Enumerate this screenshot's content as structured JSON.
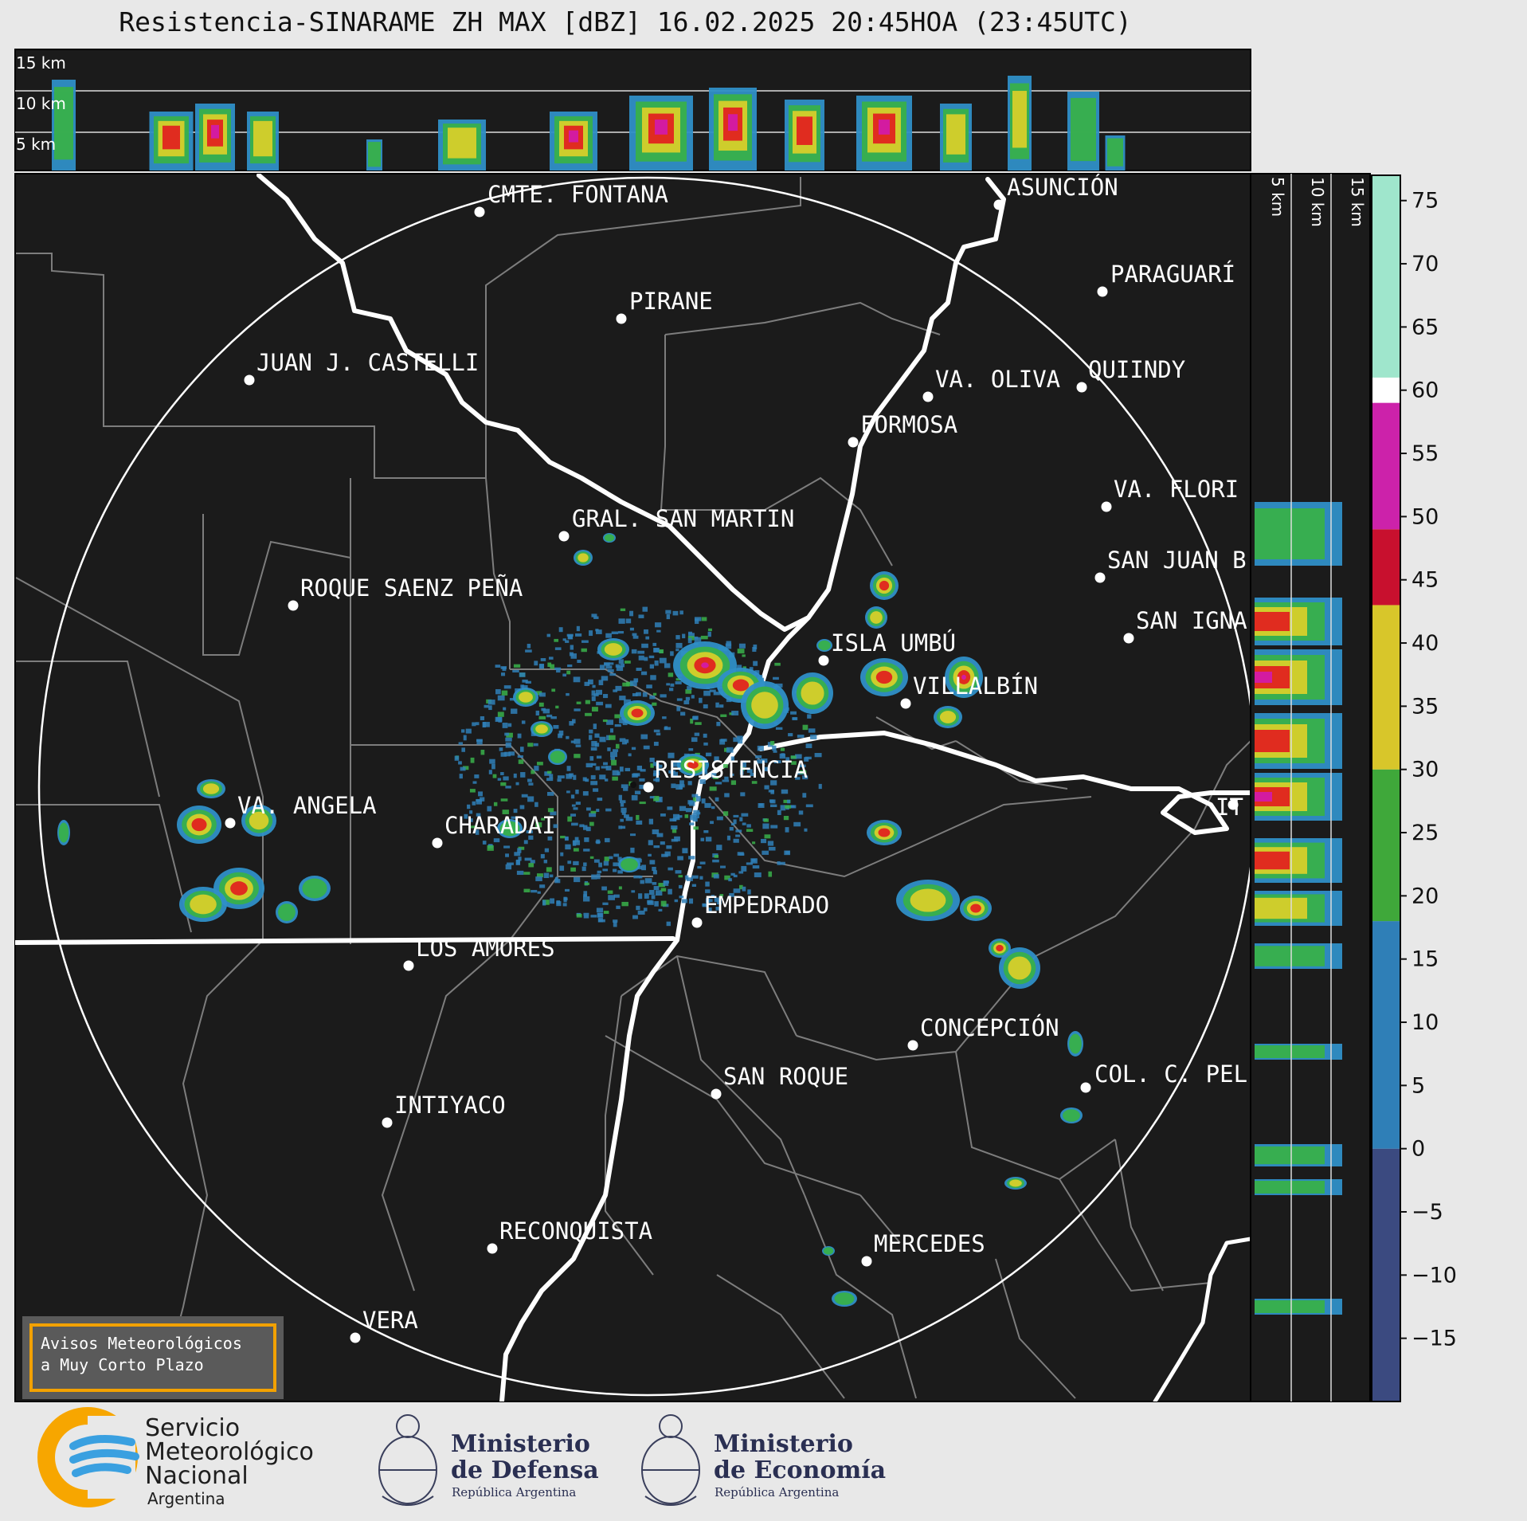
{
  "title": "Resistencia-SINARAME ZH MAX [dBZ] 16.02.2025 20:45HOA (23:45UTC)",
  "top_profile": {
    "height_labels": [
      "15 km",
      "10 km",
      "5 km"
    ]
  },
  "side_profile": {
    "height_labels": [
      "5 km",
      "10 km",
      "15 km"
    ]
  },
  "places": [
    {
      "name": "CMTE. FONTANA"
    },
    {
      "name": "ASUNCIÓN"
    },
    {
      "name": "PARAGUARÍ"
    },
    {
      "name": "PIRANE"
    },
    {
      "name": "JUAN J. CASTELLI"
    },
    {
      "name": "VA. OLIVA"
    },
    {
      "name": "QUIINDY"
    },
    {
      "name": "FORMOSA"
    },
    {
      "name": "VA. FLORI"
    },
    {
      "name": "GRAL. SAN MARTIN"
    },
    {
      "name": "SAN JUAN B"
    },
    {
      "name": "ROQUE SAENZ PEÑA"
    },
    {
      "name": "SAN IGNA"
    },
    {
      "name": "ISLA UMBÚ"
    },
    {
      "name": "VILLALBÍN"
    },
    {
      "name": "RESISTENCIA"
    },
    {
      "name": "VA. ANGELA"
    },
    {
      "name": "CHARADAI"
    },
    {
      "name": "IT"
    },
    {
      "name": "EMPEDRADO"
    },
    {
      "name": "LOS AMORES"
    },
    {
      "name": "CONCEPCIÓN"
    },
    {
      "name": "COL. C. PEL"
    },
    {
      "name": "SAN ROQUE"
    },
    {
      "name": "INTIYACO"
    },
    {
      "name": "RECONQUISTA"
    },
    {
      "name": "MERCEDES"
    },
    {
      "name": "VERA"
    }
  ],
  "colorbar": {
    "unit": "dBZ",
    "ticks": [
      "75",
      "70",
      "65",
      "60",
      "55",
      "50",
      "45",
      "40",
      "35",
      "30",
      "25",
      "20",
      "15",
      "10",
      "5",
      "0",
      "−5",
      "−10",
      "−15"
    ],
    "range": [
      -20,
      77
    ],
    "segments": [
      {
        "from": -20,
        "to": 0,
        "color": "#3b4a80"
      },
      {
        "from": 0,
        "to": 18,
        "color": "#2f7fb7"
      },
      {
        "from": 18,
        "to": 30,
        "color": "#3fa83a"
      },
      {
        "from": 30,
        "to": 43,
        "color": "#d8c62a"
      },
      {
        "from": 43,
        "to": 49,
        "color": "#c8102e"
      },
      {
        "from": 49,
        "to": 59,
        "color": "#cc22aa"
      },
      {
        "from": 59,
        "to": 61,
        "color": "#ffffff"
      },
      {
        "from": 61,
        "to": 77,
        "color": "#9fe6cc"
      }
    ]
  },
  "warning_box": {
    "line1": "Avisos Meteorológicos",
    "line2": "a Muy Corto Plazo"
  },
  "footer": {
    "smn_line1": "Servicio",
    "smn_line2": "Meteorológico",
    "smn_line3": "Nacional",
    "smn_line4": "Argentina",
    "def_line1": "Ministerio",
    "def_line2": "de Defensa",
    "def_line3": "República Argentina",
    "eco_line1": "Ministerio",
    "eco_line2": "de Economía",
    "eco_line3": "República Argentina"
  },
  "colors": {
    "map_bg": "#1b1b1b",
    "rivers": "#ffffff",
    "borders": "#808080",
    "warning_border": "#f2a100",
    "smn_orange": "#f7a600",
    "smn_blue": "#3aa0e0"
  }
}
